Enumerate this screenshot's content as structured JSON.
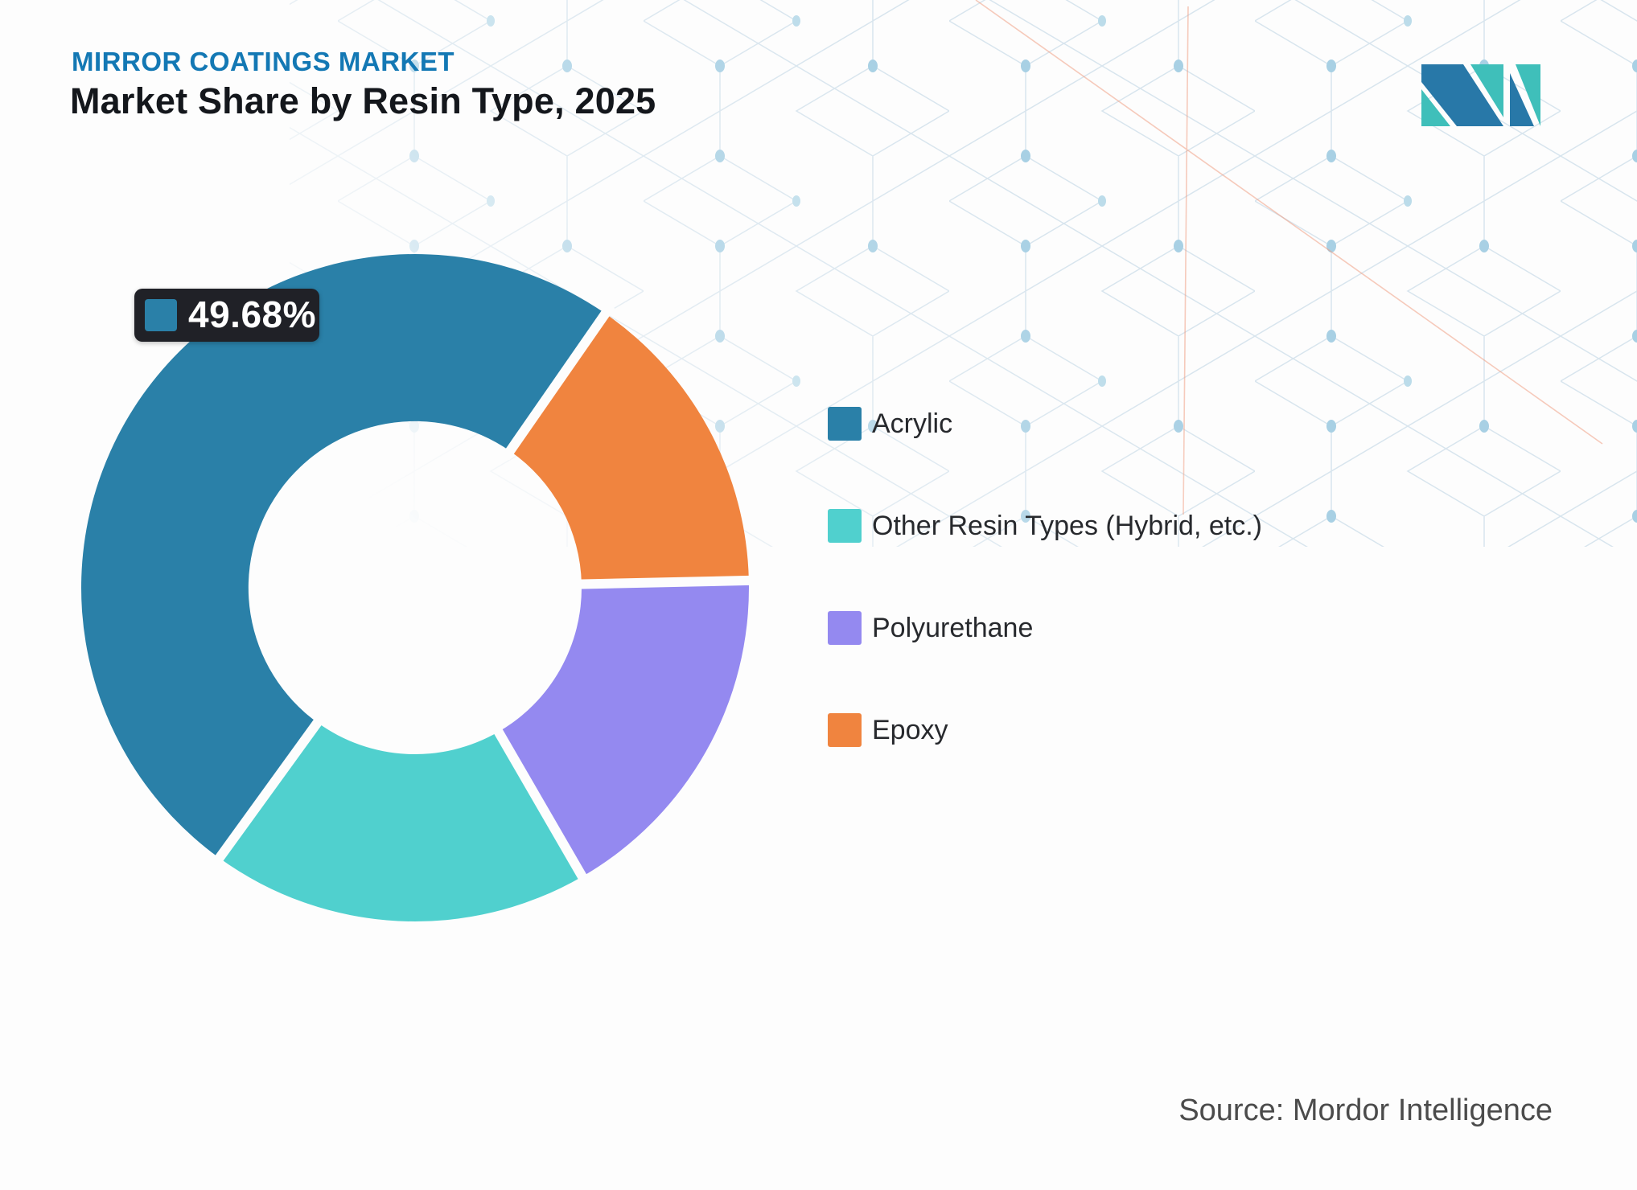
{
  "header": {
    "eyebrow": "MIRROR COATINGS MARKET",
    "title": "Market Share by Resin Type, 2025"
  },
  "source": {
    "text": "Source: Mordor Intelligence"
  },
  "logo": {
    "alt": "Mordor Intelligence logo",
    "teal": "#3fbfba",
    "blue": "#2878a8"
  },
  "chart_data": {
    "type": "pie",
    "subtype": "donut",
    "title": "Market Share by Resin Type, 2025",
    "unit": "%",
    "legend_position": "right",
    "labels_shown": [
      "Acrylic"
    ],
    "slices": [
      {
        "label": "Acrylic",
        "value": 49.68,
        "color": "#2a80a8",
        "value_label": "49.68%",
        "estimated": false
      },
      {
        "label": "Epoxy",
        "value": 15.0,
        "color": "#f0843f",
        "estimated": true
      },
      {
        "label": "Polyurethane",
        "value": 17.0,
        "color": "#9489f0",
        "estimated": true
      },
      {
        "label": "Other Resin Types (Hybrid, etc.)",
        "value": 18.32,
        "color": "#50d0ce",
        "estimated": true
      }
    ],
    "legend": [
      {
        "label": "Acrylic",
        "color": "#2a80a8"
      },
      {
        "label": "Other Resin Types (Hybrid, etc.)",
        "color": "#50d0ce"
      },
      {
        "label": "Polyurethane",
        "color": "#9489f0"
      },
      {
        "label": "Epoxy",
        "color": "#f0843f"
      }
    ],
    "annotation": {
      "text": "49.68%",
      "swatch_color": "#2a80a8"
    }
  }
}
